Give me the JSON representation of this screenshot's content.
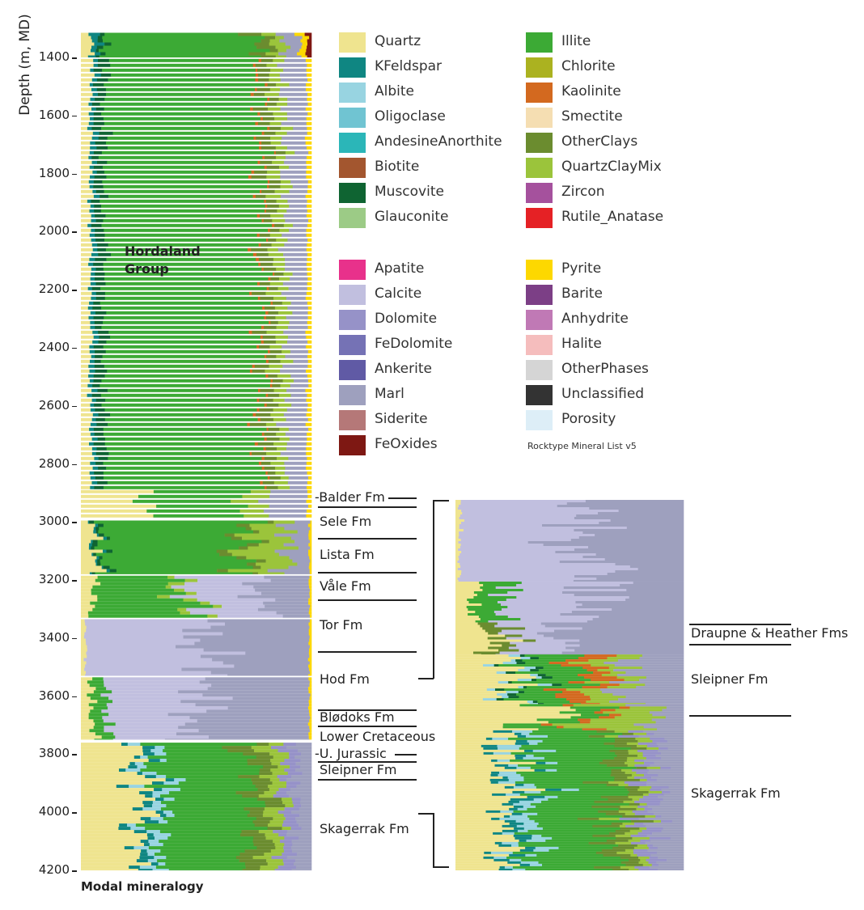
{
  "axis": {
    "ylabel": "Depth (m, MD)",
    "ticks": [
      "1400",
      "1600",
      "1800",
      "2000",
      "2200",
      "2400",
      "2600",
      "2800",
      "3000",
      "3200",
      "3400",
      "3600",
      "3800",
      "4000",
      "4200"
    ]
  },
  "titles": {
    "bottom": "Modal mineralogy",
    "group_line1": "Hordaland",
    "group_line2": "Group",
    "legend_caption": "Rocktype Mineral List v5"
  },
  "legend": [
    {
      "name": "Quartz",
      "color": "#efe48f"
    },
    {
      "name": "KFeldspar",
      "color": "#0f8682"
    },
    {
      "name": "Albite",
      "color": "#98d4e1"
    },
    {
      "name": "Oligoclase",
      "color": "#70c4d2"
    },
    {
      "name": "AndesineAnorthite",
      "color": "#2bb6b8"
    },
    {
      "name": "Biotite",
      "color": "#a3562f"
    },
    {
      "name": "Muscovite",
      "color": "#0f6432"
    },
    {
      "name": "Glauconite",
      "color": "#9ccb86"
    },
    {
      "name": "Illite",
      "color": "#3caa35"
    },
    {
      "name": "Chlorite",
      "color": "#abb220"
    },
    {
      "name": "Kaolinite",
      "color": "#d3691f"
    },
    {
      "name": "Smectite",
      "color": "#f5deb2"
    },
    {
      "name": "OtherClays",
      "color": "#6b8c2f"
    },
    {
      "name": "QuartzClayMix",
      "color": "#9bc43b"
    },
    {
      "name": "Zircon",
      "color": "#a5519d"
    },
    {
      "name": "Rutile_Anatase",
      "color": "#e52125"
    },
    {
      "name": "Apatite",
      "color": "#e8318b"
    },
    {
      "name": "Calcite",
      "color": "#c1bfdf"
    },
    {
      "name": "Dolomite",
      "color": "#9692c8"
    },
    {
      "name": "FeDolomite",
      "color": "#7572b5"
    },
    {
      "name": "Ankerite",
      "color": "#605aa5"
    },
    {
      "name": "Marl",
      "color": "#9ea0be"
    },
    {
      "name": "Siderite",
      "color": "#b57878"
    },
    {
      "name": "FeOxides",
      "color": "#7e1813"
    },
    {
      "name": "Pyrite",
      "color": "#fdd800"
    },
    {
      "name": "Barite",
      "color": "#7c3f86"
    },
    {
      "name": "Anhydrite",
      "color": "#c079b5"
    },
    {
      "name": "Halite",
      "color": "#f5bdbd"
    },
    {
      "name": "OtherPhases",
      "color": "#d5d5d5"
    },
    {
      "name": "Unclassified",
      "color": "#333333"
    },
    {
      "name": "Porosity",
      "color": "#ddeef7"
    }
  ],
  "formations_left": [
    "-Balder Fm",
    "Sele Fm",
    "Lista Fm",
    "Våle Fm",
    "Tor Fm",
    "Hod Fm",
    "Blødoks Fm",
    "Lower Cretaceous",
    "-U. Jurassic",
    "Sleipner Fm",
    "Skagerrak Fm"
  ],
  "formations_right": [
    "Draupne & Heather Fms",
    "Sleipner Fm",
    "Skagerrak Fm"
  ],
  "chart_data": {
    "type": "stacked-bar-log",
    "title": "Modal mineralogy",
    "ylabel": "Depth (m, MD)",
    "ylim": [
      1315,
      4200
    ],
    "xlim": [
      0,
      100
    ],
    "stack_order": [
      "Quartz",
      "KFeldspar",
      "Albite",
      "Muscovite",
      "Illite",
      "Kaolinite",
      "OtherClays",
      "QuartzClayMix",
      "Calcite",
      "Dolomite",
      "Marl",
      "Pyrite",
      "FeOxides"
    ],
    "main_zones": [
      {
        "from": 1315,
        "to": 1400,
        "striped": false,
        "comp": {
          "Quartz": 5,
          "KFeldspar": 3,
          "Muscovite": 2,
          "Illite": 65,
          "OtherClays": 7,
          "QuartzClayMix": 5,
          "Marl": 8,
          "Pyrite": 3,
          "FeOxides": 2
        }
      },
      {
        "from": 1405,
        "to": 2890,
        "striped": true,
        "comp": {
          "Quartz": 4,
          "KFeldspar": 2,
          "Muscovite": 4,
          "Illite": 68,
          "Kaolinite": 1,
          "OtherClays": 5,
          "QuartzClayMix": 5,
          "Marl": 9,
          "Pyrite": 2
        }
      },
      {
        "from": 2890,
        "to": 2990,
        "striped": true,
        "comp": {
          "Quartz": 30,
          "Illite": 40,
          "QuartzClayMix": 10,
          "Marl": 18,
          "Pyrite": 2
        }
      },
      {
        "from": 2995,
        "to": 3180,
        "striped": false,
        "comp": {
          "Quartz": 6,
          "KFeldspar": 1,
          "Muscovite": 2,
          "Illite": 58,
          "OtherClays": 4,
          "QuartzClayMix": 18,
          "Marl": 10,
          "Pyrite": 1
        }
      },
      {
        "from": 3185,
        "to": 3330,
        "striped": false,
        "comp": {
          "Quartz": 5,
          "Illite": 38,
          "QuartzClayMix": 5,
          "Calcite": 30,
          "Marl": 21,
          "Pyrite": 1
        }
      },
      {
        "from": 3335,
        "to": 3530,
        "striped": false,
        "comp": {
          "Quartz": 2,
          "Calcite": 55,
          "Marl": 42,
          "Pyrite": 1
        }
      },
      {
        "from": 3535,
        "to": 3750,
        "striped": false,
        "comp": {
          "Quartz": 5,
          "Illite": 6,
          "Calcite": 40,
          "Marl": 48,
          "Pyrite": 1
        }
      },
      {
        "from": 3760,
        "to": 4200,
        "striped": false,
        "comp": {
          "Quartz": 25,
          "KFeldspar": 4,
          "Albite": 5,
          "Illite": 40,
          "OtherClays": 8,
          "QuartzClayMix": 6,
          "Dolomite": 5,
          "Marl": 7
        }
      }
    ],
    "inset_zones": [
      {
        "from": 2930,
        "to": 3210,
        "comp": {
          "Quartz": 2,
          "Calcite": 55,
          "Marl": 43
        }
      },
      {
        "from": 3210,
        "to": 3350,
        "comp": {
          "Quartz": 8,
          "Illite": 12,
          "Calcite": 35,
          "Marl": 45
        }
      },
      {
        "from": 3350,
        "to": 3460,
        "comp": {
          "Quartz": 15,
          "OtherClays": 8,
          "Calcite": 20,
          "Marl": 57
        }
      },
      {
        "from": 3460,
        "to": 3630,
        "comp": {
          "Quartz": 25,
          "Albite": 5,
          "Muscovite": 3,
          "Illite": 20,
          "Kaolinite": 10,
          "QuartzClayMix": 12,
          "Marl": 25
        }
      },
      {
        "from": 3630,
        "to": 3720,
        "comp": {
          "Quartz": 40,
          "Illite": 15,
          "Kaolinite": 5,
          "QuartzClayMix": 25,
          "Marl": 15
        }
      },
      {
        "from": 3720,
        "to": 4200,
        "comp": {
          "Quartz": 22,
          "KFeldspar": 5,
          "Albite": 7,
          "Illite": 35,
          "OtherClays": 8,
          "QuartzClayMix": 5,
          "Dolomite": 6,
          "Marl": 12
        }
      }
    ]
  }
}
